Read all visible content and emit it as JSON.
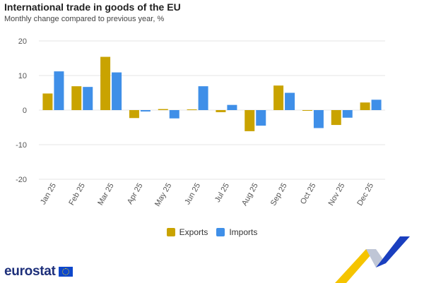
{
  "header": {
    "title": "International trade in goods of the EU",
    "subtitle": "Monthly change compared to previous year, %"
  },
  "brand": {
    "name": "eurostat"
  },
  "colors": {
    "exports": "#c9a300",
    "imports": "#3f8fe8",
    "grid": "#e6e6e6",
    "flag": "#0e47cb",
    "ribbon_yellow": "#f5c400",
    "ribbon_blue": "#1a3fbf"
  },
  "chart_data": {
    "type": "bar",
    "categories": [
      "Jan 25",
      "Feb 25",
      "Mar 25",
      "Apr 25",
      "May 25",
      "Jun 25",
      "Jul 25",
      "Aug 25",
      "Sep 25",
      "Oct 25",
      "Nov 25",
      "Dec 25"
    ],
    "series": [
      {
        "name": "Exports",
        "values": [
          4.8,
          6.9,
          15.4,
          -2.3,
          0.3,
          0.2,
          -0.6,
          -6.1,
          7.1,
          -0.2,
          -4.3,
          2.2
        ]
      },
      {
        "name": "Imports",
        "values": [
          11.2,
          6.7,
          10.9,
          -0.4,
          -2.4,
          6.9,
          1.5,
          -4.5,
          5.0,
          -5.2,
          -2.2,
          3.0
        ]
      }
    ],
    "yticks": [
      20,
      10,
      0,
      -10,
      -20
    ],
    "ylim": [
      -20,
      20
    ],
    "grid": true,
    "legend_position": "bottom-center",
    "title": "International trade in goods of the EU",
    "subtitle": "Monthly change compared to previous year, %",
    "xlabel": "",
    "ylabel": ""
  }
}
